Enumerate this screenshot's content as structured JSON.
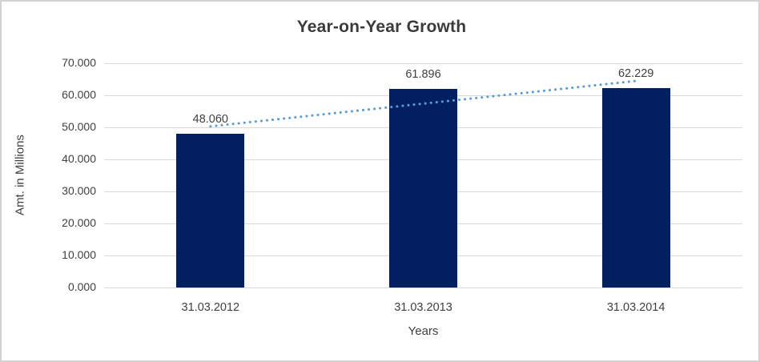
{
  "chart_data": {
    "type": "bar",
    "title": "Year-on-Year Growth",
    "xlabel": "Years",
    "ylabel": "Amt. in Millions",
    "categories": [
      "31.03.2012",
      "31.03.2013",
      "31.03.2014"
    ],
    "values": [
      48060,
      61896,
      62229
    ],
    "value_labels": [
      "48.060",
      "61.896",
      "62.229"
    ],
    "ylim": [
      0,
      70000
    ],
    "ytick_step": 10000,
    "ytick_labels": [
      "0.000",
      "10.000",
      "20.000",
      "30.000",
      "40.000",
      "50.000",
      "60.000",
      "70.000"
    ],
    "grid": true,
    "legend": "none",
    "trendline": {
      "type": "linear",
      "style": "dotted"
    }
  },
  "colors": {
    "bar": "#022061",
    "trendline": "#5b9bd5",
    "gridline": "#d9d9d9",
    "text": "#404040",
    "title": "#3b3b3b",
    "frame_border": "#d3d3d3"
  }
}
